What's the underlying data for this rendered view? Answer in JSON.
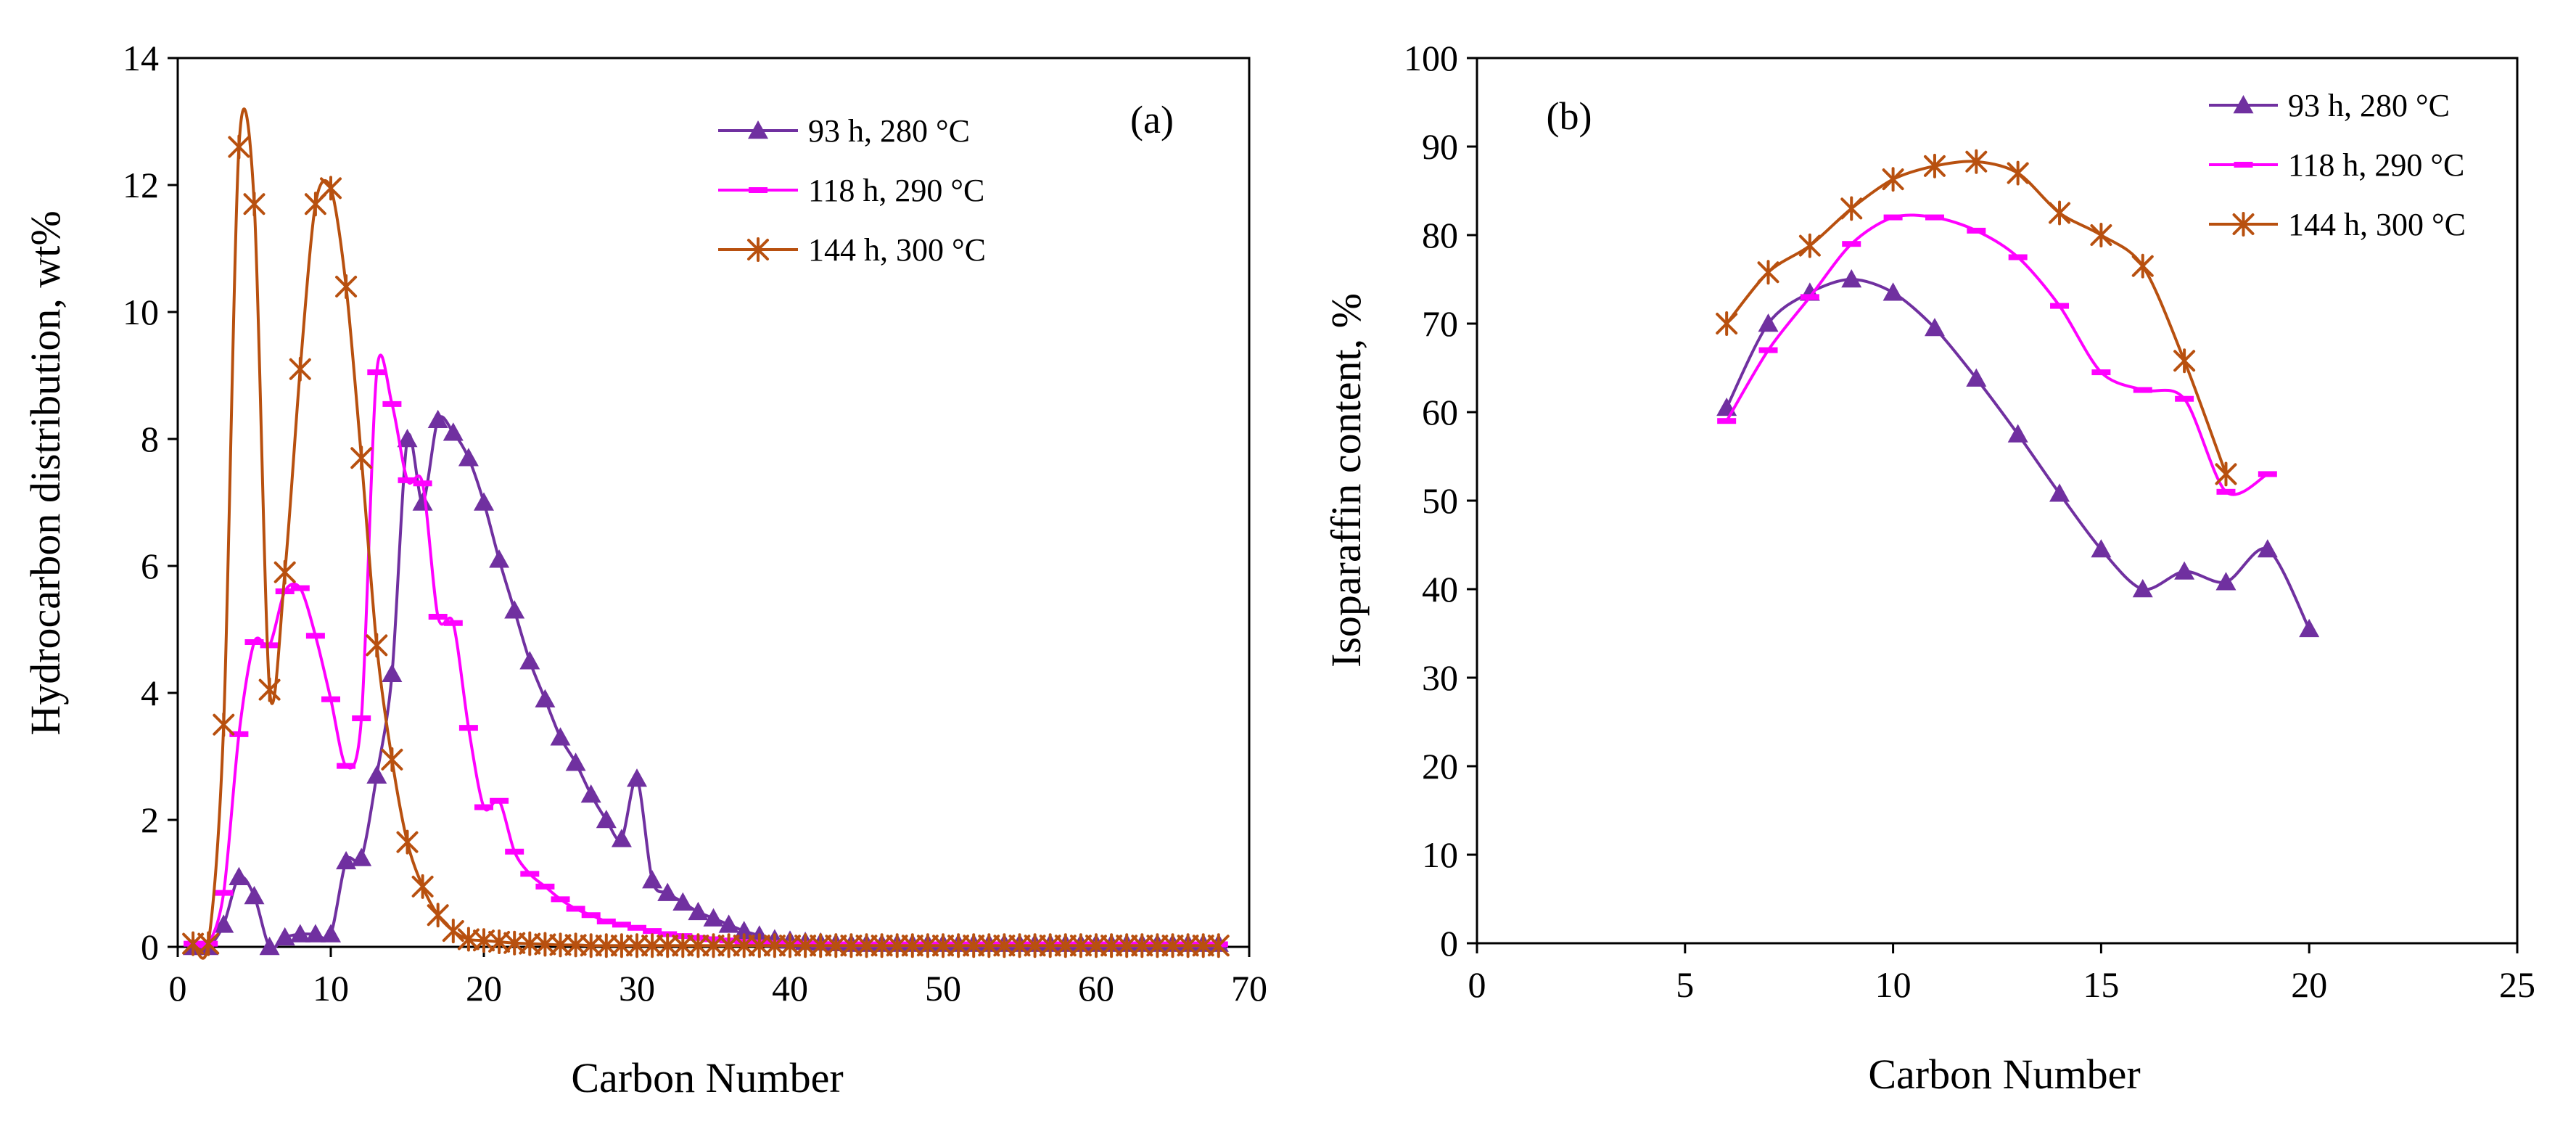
{
  "chart_data": [
    {
      "type": "line",
      "panel_label": "(a)",
      "title": "",
      "xlabel": "Carbon Number",
      "ylabel": "Hydrocarbon distribution, wt%",
      "xlim": [
        0,
        70
      ],
      "ylim": [
        0,
        14
      ],
      "xticks": [
        "0",
        "10",
        "20",
        "30",
        "40",
        "50",
        "60",
        "70"
      ],
      "yticks": [
        "0",
        "2",
        "4",
        "6",
        "8",
        "10",
        "12",
        "14"
      ],
      "grid": false,
      "legend_position": "top-right",
      "series": [
        {
          "name": "93 h, 280 °C",
          "color": "#7030A0",
          "marker": "triangle",
          "x": [
            1,
            2,
            3,
            4,
            5,
            6,
            7,
            8,
            9,
            10,
            11,
            12,
            13,
            14,
            15,
            16,
            17,
            18,
            19,
            20,
            21,
            22,
            23,
            24,
            25,
            26,
            27,
            28,
            29,
            30,
            31,
            32,
            33,
            34,
            35,
            36,
            37,
            38,
            39,
            40,
            41,
            42,
            43,
            44,
            45,
            46,
            47,
            48,
            49,
            50,
            51,
            52,
            53,
            54,
            55,
            56,
            57,
            58,
            59,
            60,
            61,
            62,
            63,
            64,
            65,
            66,
            67,
            68
          ],
          "y": [
            0,
            0,
            0.35,
            1.1,
            0.8,
            0,
            0.15,
            0.2,
            0.2,
            0.2,
            1.35,
            1.4,
            2.7,
            4.3,
            8,
            7,
            8.3,
            8.1,
            7.7,
            7,
            6.1,
            5.3,
            4.5,
            3.9,
            3.3,
            2.9,
            2.4,
            2,
            1.7,
            2.65,
            1.05,
            0.85,
            0.7,
            0.55,
            0.45,
            0.35,
            0.25,
            0.18,
            0.12,
            0.1,
            0.08,
            0.07,
            0.06,
            0.05,
            0.05,
            0.05,
            0.05,
            0.05,
            0.05,
            0.05,
            0.05,
            0.05,
            0.05,
            0.05,
            0.05,
            0.05,
            0.05,
            0.05,
            0.05,
            0.05,
            0.05,
            0.05,
            0.05,
            0.05,
            0.05,
            0.05,
            0.05,
            0.05
          ]
        },
        {
          "name": "118 h, 290 °C",
          "color": "#FF00FF",
          "marker": "dash",
          "x": [
            1,
            2,
            3,
            4,
            5,
            6,
            7,
            8,
            9,
            10,
            11,
            12,
            13,
            14,
            15,
            16,
            17,
            18,
            19,
            20,
            21,
            22,
            23,
            24,
            25,
            26,
            27,
            28,
            29,
            30,
            31,
            32,
            33,
            34,
            35,
            36,
            37,
            38,
            39,
            40,
            41,
            42,
            43,
            44,
            45,
            46,
            47,
            48,
            49,
            50,
            51,
            52,
            53,
            54,
            55,
            56,
            57,
            58,
            59,
            60,
            61,
            62,
            63,
            64,
            65,
            66,
            67,
            68
          ],
          "y": [
            0.05,
            0.05,
            0.85,
            3.35,
            4.8,
            4.75,
            5.6,
            5.65,
            4.9,
            3.9,
            2.85,
            3.6,
            9.05,
            8.55,
            7.35,
            7.3,
            5.2,
            5.1,
            3.45,
            2.2,
            2.3,
            1.5,
            1.15,
            0.95,
            0.75,
            0.6,
            0.5,
            0.4,
            0.35,
            0.3,
            0.25,
            0.2,
            0.17,
            0.14,
            0.12,
            0.1,
            0.08,
            0.07,
            0.06,
            0.05,
            0.05,
            0.04,
            0.04,
            0.04,
            0.04,
            0.04,
            0.04,
            0.04,
            0.04,
            0.04,
            0.04,
            0.04,
            0.04,
            0.04,
            0.04,
            0.04,
            0.04,
            0.04,
            0.04,
            0.04,
            0.04,
            0.04,
            0.04,
            0.04,
            0.04,
            0.04,
            0.04,
            0.04
          ]
        },
        {
          "name": "144 h, 300 °C",
          "color": "#B8500F",
          "marker": "star",
          "x": [
            1,
            2,
            3,
            4,
            5,
            6,
            7,
            8,
            9,
            10,
            11,
            12,
            13,
            14,
            15,
            16,
            17,
            18,
            19,
            20,
            21,
            22,
            23,
            24,
            25,
            26,
            27,
            28,
            29,
            30,
            31,
            32,
            33,
            34,
            35,
            36,
            37,
            38,
            39,
            40,
            41,
            42,
            43,
            44,
            45,
            46,
            47,
            48,
            49,
            50,
            51,
            52,
            53,
            54,
            55,
            56,
            57,
            58,
            59,
            60,
            61,
            62,
            63,
            64,
            65,
            66,
            67,
            68
          ],
          "y": [
            0.05,
            0.05,
            3.5,
            12.6,
            11.7,
            4.05,
            5.9,
            9.1,
            11.7,
            11.95,
            10.4,
            7.7,
            4.75,
            2.95,
            1.65,
            0.95,
            0.5,
            0.25,
            0.12,
            0.1,
            0.08,
            0.06,
            0.05,
            0.04,
            0.03,
            0.03,
            0.02,
            0.02,
            0.02,
            0.02,
            0.02,
            0.02,
            0.02,
            0.02,
            0.02,
            0.02,
            0.02,
            0.02,
            0.02,
            0.02,
            0.02,
            0.02,
            0.02,
            0.02,
            0.02,
            0.02,
            0.02,
            0.02,
            0.02,
            0.02,
            0.02,
            0.02,
            0.02,
            0.02,
            0.02,
            0.02,
            0.02,
            0.02,
            0.02,
            0.02,
            0.02,
            0.02,
            0.02,
            0.02,
            0.02,
            0.02,
            0.02,
            0.02
          ]
        }
      ]
    },
    {
      "type": "line",
      "panel_label": "(b)",
      "title": "",
      "xlabel": "Carbon Number",
      "ylabel": "Isoparaffin content, %",
      "xlim": [
        0,
        25
      ],
      "ylim": [
        0,
        100
      ],
      "xticks": [
        "0",
        "5",
        "10",
        "15",
        "20",
        "25"
      ],
      "yticks": [
        "0",
        "10",
        "20",
        "30",
        "40",
        "50",
        "60",
        "70",
        "80",
        "90",
        "100"
      ],
      "grid": false,
      "legend_position": "top-right",
      "series": [
        {
          "name": "93 h, 280 °C",
          "color": "#7030A0",
          "marker": "triangle",
          "x": [
            6,
            7,
            8,
            9,
            10,
            11,
            12,
            13,
            14,
            15,
            16,
            17,
            18,
            19,
            20
          ],
          "y": [
            60.5,
            70,
            73.5,
            75,
            73.5,
            69.5,
            63.8,
            57.5,
            50.8,
            44.5,
            40,
            42,
            40.8,
            44.5,
            35.5
          ]
        },
        {
          "name": "118 h, 290 °C",
          "color": "#FF00FF",
          "marker": "dash",
          "x": [
            6,
            7,
            8,
            9,
            10,
            11,
            12,
            13,
            14,
            15,
            16,
            17,
            18,
            19
          ],
          "y": [
            59,
            67,
            73,
            79,
            82,
            82,
            80.5,
            77.5,
            72,
            64.5,
            62.5,
            61.5,
            51,
            53
          ]
        },
        {
          "name": "144 h, 300 °C",
          "color": "#B8500F",
          "marker": "star",
          "x": [
            6,
            7,
            8,
            9,
            10,
            11,
            12,
            13,
            14,
            15,
            16,
            17,
            18
          ],
          "y": [
            70,
            75.8,
            78.8,
            83,
            86.3,
            87.8,
            88.3,
            87,
            82.5,
            80,
            76.5,
            65.8,
            53
          ]
        }
      ]
    }
  ]
}
